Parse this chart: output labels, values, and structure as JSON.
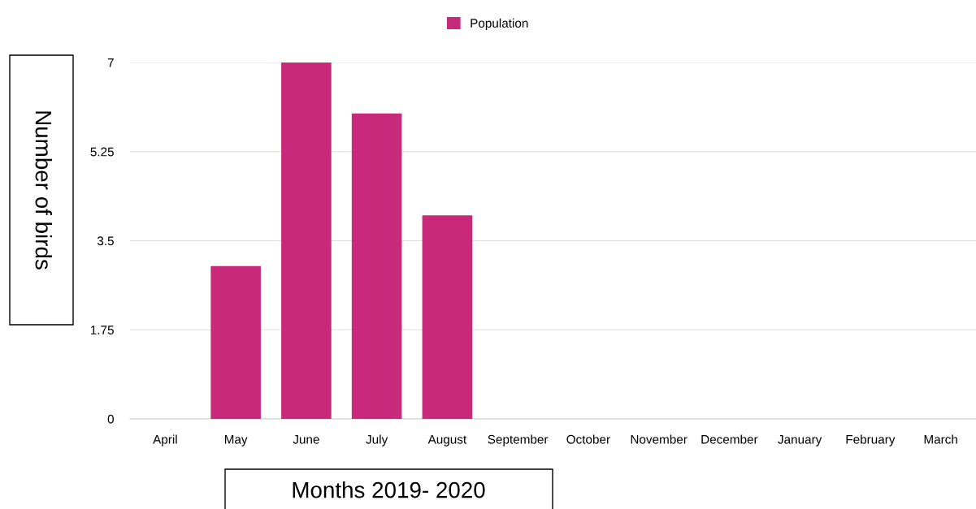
{
  "chart_data": {
    "type": "bar",
    "xlabel": "Months 2019- 2020",
    "ylabel": "Number of birds",
    "categories": [
      "April",
      "May",
      "June",
      "July",
      "August",
      "September",
      "October",
      "November",
      "December",
      "January",
      "February",
      "March"
    ],
    "series": [
      {
        "name": "Population",
        "color": "#c8297a",
        "values": [
          0,
          3,
          7,
          6,
          4,
          0,
          0,
          0,
          0,
          0,
          0,
          0
        ]
      }
    ],
    "ylim": [
      0,
      7
    ],
    "yticks": [
      0,
      1.75,
      3.5,
      5.25,
      7
    ],
    "grid": "y",
    "legend": "top"
  }
}
